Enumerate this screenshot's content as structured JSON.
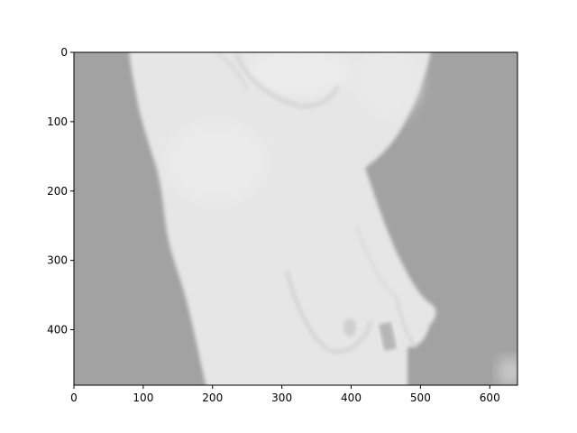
{
  "figure": {
    "background": "#ffffff",
    "image_background": "#a2a2a2",
    "body_color": "#e6e6e6",
    "axes": {
      "x_ticks": [
        0,
        100,
        200,
        300,
        400,
        500,
        600
      ],
      "y_ticks": [
        0,
        100,
        200,
        300,
        400
      ],
      "x_range": [
        0,
        640
      ],
      "y_range": [
        0,
        480
      ],
      "y_inverted": true
    }
  }
}
